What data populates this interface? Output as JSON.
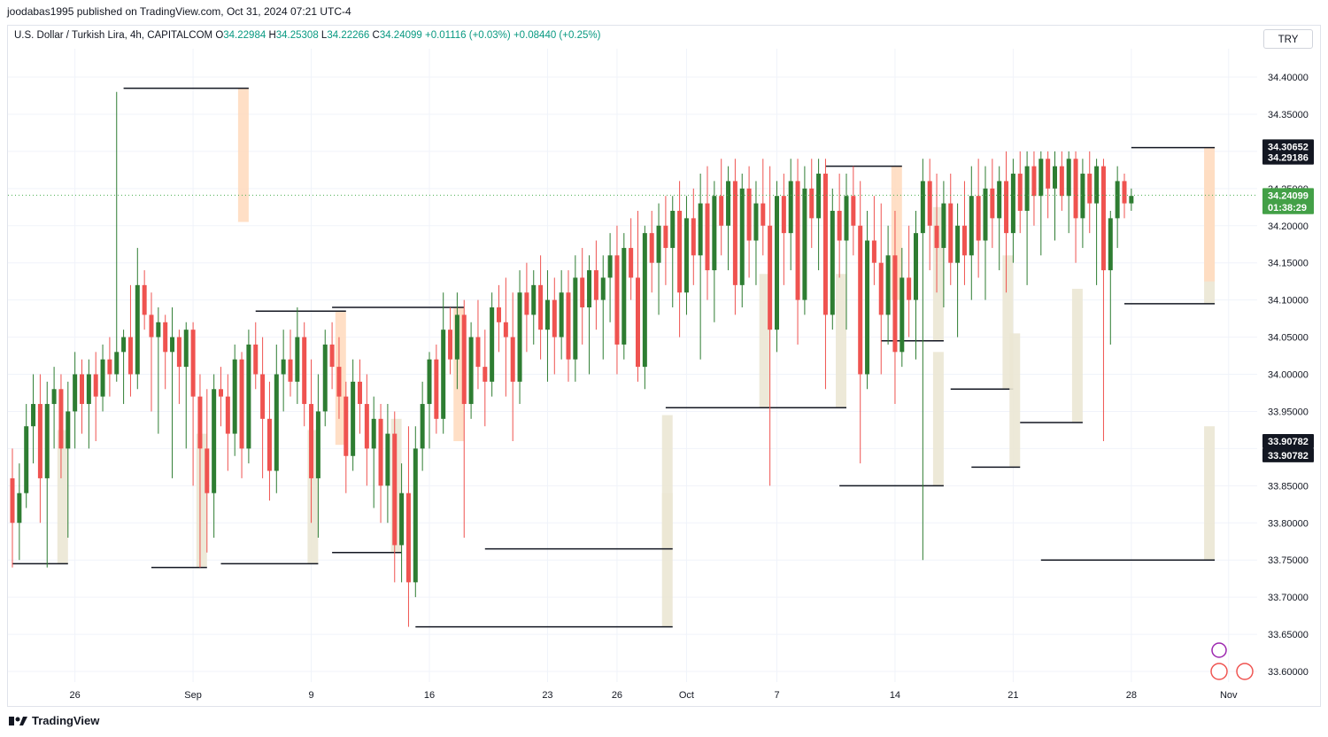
{
  "header": {
    "published": "joodabas1995 published on TradingView.com, Oct 31, 2024 07:21 UTC-4"
  },
  "legend": {
    "symbol": "U.S. Dollar / Turkish Lira, 4h, CAPITALCOM",
    "o_label": "O",
    "o": "34.22984",
    "h_label": "H",
    "h": "34.25308",
    "l_label": "L",
    "l": "34.22266",
    "c_label": "C",
    "c": "34.24099",
    "change": "+0.01116 (+0.03%)",
    "change2": "+0.08440 (+0.25%)"
  },
  "currency": "TRY",
  "footer": {
    "brand": "TradingView"
  },
  "colors": {
    "up": "#2e7d32",
    "down": "#ef5350",
    "supply": "#ffdcc0",
    "demand": "#ebe7d4",
    "price_line": "#4caf50"
  },
  "price_tags": [
    {
      "value": "34.30652",
      "price": 34.30652,
      "bg": "#131722"
    },
    {
      "value": "34.29186",
      "price": 34.29186,
      "bg": "#131722"
    },
    {
      "value": "34.24099",
      "price": 34.24099,
      "bg": "#43a047"
    },
    {
      "value": "01:38:29",
      "price": 34.225,
      "bg": "#43a047"
    },
    {
      "value": "33.90782",
      "price": 33.91,
      "bg": "#131722"
    },
    {
      "value": "33.90782",
      "price": 33.891,
      "bg": "#131722"
    }
  ],
  "chart_data": {
    "type": "candlestick",
    "timeframe": "4h",
    "ylim": [
      33.58,
      34.43
    ],
    "y_ticks": [
      "34.40000",
      "34.35000",
      "34.30000",
      "34.25000",
      "34.20000",
      "34.15000",
      "34.10000",
      "34.05000",
      "34.00000",
      "33.95000",
      "33.90000",
      "33.85000",
      "33.80000",
      "33.75000",
      "33.70000",
      "33.65000",
      "33.60000"
    ],
    "y_tick_values": [
      34.4,
      34.35,
      34.3,
      34.25,
      34.2,
      34.15,
      34.1,
      34.05,
      34.0,
      33.95,
      33.9,
      33.85,
      33.8,
      33.75,
      33.7,
      33.65,
      33.6
    ],
    "x_ticks": [
      "26",
      "Sep",
      "9",
      "16",
      "23",
      "26",
      "Oct",
      "7",
      "14",
      "21",
      "28",
      "Nov"
    ],
    "x_tick_bars": [
      9,
      26,
      43,
      60,
      77,
      87,
      97,
      110,
      127,
      144,
      161,
      175
    ],
    "bar_count": 172,
    "last_price": 34.24099,
    "candles": [
      [
        33.86,
        33.9,
        33.74,
        33.8
      ],
      [
        33.8,
        33.88,
        33.75,
        33.84
      ],
      [
        33.84,
        33.96,
        33.82,
        33.93
      ],
      [
        33.93,
        34.0,
        33.88,
        33.96
      ],
      [
        33.96,
        34.0,
        33.8,
        33.86
      ],
      [
        33.86,
        33.99,
        33.74,
        33.96
      ],
      [
        33.96,
        34.01,
        33.9,
        33.98
      ],
      [
        33.98,
        34.0,
        33.86,
        33.9
      ],
      [
        33.9,
        33.99,
        33.78,
        33.95
      ],
      [
        33.95,
        34.03,
        33.9,
        34.0
      ],
      [
        34.0,
        34.02,
        33.92,
        33.96
      ],
      [
        33.96,
        34.02,
        33.9,
        34.0
      ],
      [
        34.0,
        34.03,
        33.91,
        33.97
      ],
      [
        33.97,
        34.04,
        33.95,
        34.02
      ],
      [
        34.02,
        34.05,
        33.97,
        34.0
      ],
      [
        34.0,
        34.38,
        33.99,
        34.03
      ],
      [
        34.03,
        34.06,
        33.96,
        34.05
      ],
      [
        34.05,
        34.12,
        33.97,
        34.0
      ],
      [
        34.0,
        34.17,
        33.98,
        34.12
      ],
      [
        34.12,
        34.14,
        34.06,
        34.08
      ],
      [
        34.08,
        34.11,
        33.95,
        34.05
      ],
      [
        34.05,
        34.09,
        33.92,
        34.07
      ],
      [
        34.07,
        34.08,
        33.98,
        34.03
      ],
      [
        34.03,
        34.09,
        33.86,
        34.05
      ],
      [
        34.05,
        34.06,
        33.96,
        34.01
      ],
      [
        34.01,
        34.07,
        33.9,
        34.06
      ],
      [
        34.06,
        34.07,
        33.85,
        33.97
      ],
      [
        33.97,
        34.0,
        33.74,
        33.9
      ],
      [
        33.9,
        33.98,
        33.76,
        33.84
      ],
      [
        33.84,
        34.0,
        33.78,
        33.98
      ],
      [
        33.98,
        34.01,
        33.93,
        33.97
      ],
      [
        33.97,
        34.0,
        33.87,
        33.92
      ],
      [
        33.92,
        34.04,
        33.89,
        34.02
      ],
      [
        34.02,
        34.03,
        33.86,
        33.9
      ],
      [
        33.9,
        34.06,
        33.88,
        34.04
      ],
      [
        34.04,
        34.07,
        33.98,
        34.0
      ],
      [
        34.0,
        34.05,
        33.86,
        33.94
      ],
      [
        33.94,
        33.99,
        33.83,
        33.87
      ],
      [
        33.87,
        34.04,
        33.84,
        34.0
      ],
      [
        34.0,
        34.06,
        33.95,
        34.02
      ],
      [
        34.02,
        34.06,
        33.97,
        33.99
      ],
      [
        33.99,
        34.09,
        33.96,
        34.05
      ],
      [
        34.05,
        34.07,
        33.93,
        33.96
      ],
      [
        33.96,
        34.02,
        33.8,
        33.86
      ],
      [
        33.86,
        34.0,
        33.78,
        33.95
      ],
      [
        33.95,
        34.06,
        33.93,
        34.04
      ],
      [
        34.04,
        34.07,
        33.98,
        34.01
      ],
      [
        34.01,
        34.05,
        33.94,
        33.97
      ],
      [
        33.97,
        33.99,
        33.84,
        33.89
      ],
      [
        33.89,
        34.02,
        33.87,
        33.99
      ],
      [
        33.99,
        34.02,
        33.92,
        33.96
      ],
      [
        33.96,
        34.0,
        33.85,
        33.9
      ],
      [
        33.9,
        33.97,
        33.82,
        33.94
      ],
      [
        33.94,
        33.96,
        33.8,
        33.85
      ],
      [
        33.85,
        33.96,
        33.8,
        33.92
      ],
      [
        33.92,
        33.95,
        33.72,
        33.77
      ],
      [
        33.77,
        33.88,
        33.72,
        33.84
      ],
      [
        33.84,
        33.93,
        33.66,
        33.72
      ],
      [
        33.72,
        33.93,
        33.7,
        33.9
      ],
      [
        33.9,
        33.99,
        33.87,
        33.96
      ],
      [
        33.96,
        34.03,
        33.9,
        34.02
      ],
      [
        34.02,
        34.04,
        33.92,
        33.94
      ],
      [
        33.94,
        34.11,
        33.92,
        34.06
      ],
      [
        34.06,
        34.09,
        34.0,
        34.02
      ],
      [
        34.02,
        34.11,
        33.98,
        34.08
      ],
      [
        34.08,
        34.1,
        33.78,
        33.96
      ],
      [
        33.96,
        34.07,
        33.94,
        34.05
      ],
      [
        34.05,
        34.1,
        33.98,
        34.01
      ],
      [
        34.01,
        34.06,
        33.93,
        33.99
      ],
      [
        33.99,
        34.11,
        33.97,
        34.09
      ],
      [
        34.09,
        34.12,
        34.03,
        34.07
      ],
      [
        34.07,
        34.13,
        33.97,
        34.05
      ],
      [
        34.05,
        34.11,
        33.91,
        33.99
      ],
      [
        33.99,
        34.14,
        33.96,
        34.11
      ],
      [
        34.11,
        34.15,
        34.03,
        34.08
      ],
      [
        34.08,
        34.14,
        34.04,
        34.12
      ],
      [
        34.12,
        34.16,
        34.02,
        34.06
      ],
      [
        34.06,
        34.14,
        33.99,
        34.1
      ],
      [
        34.1,
        34.13,
        34.0,
        34.05
      ],
      [
        34.05,
        34.14,
        34.02,
        34.11
      ],
      [
        34.11,
        34.14,
        33.99,
        34.02
      ],
      [
        34.02,
        34.16,
        33.99,
        34.13
      ],
      [
        34.13,
        34.17,
        34.04,
        34.09
      ],
      [
        34.09,
        34.16,
        34.0,
        34.14
      ],
      [
        34.14,
        34.18,
        34.06,
        34.1
      ],
      [
        34.1,
        34.16,
        34.02,
        34.13
      ],
      [
        34.13,
        34.19,
        34.07,
        34.16
      ],
      [
        34.16,
        34.2,
        34.0,
        34.04
      ],
      [
        34.04,
        34.19,
        34.02,
        34.17
      ],
      [
        34.17,
        34.21,
        34.1,
        34.13
      ],
      [
        34.13,
        34.22,
        33.99,
        34.01
      ],
      [
        34.01,
        34.2,
        33.98,
        34.19
      ],
      [
        34.19,
        34.22,
        34.11,
        34.15
      ],
      [
        34.15,
        34.23,
        34.08,
        34.2
      ],
      [
        34.2,
        34.24,
        34.12,
        34.17
      ],
      [
        34.17,
        34.24,
        34.09,
        34.22
      ],
      [
        34.22,
        34.26,
        34.05,
        34.11
      ],
      [
        34.11,
        34.24,
        34.08,
        34.21
      ],
      [
        34.21,
        34.25,
        34.12,
        34.16
      ],
      [
        34.16,
        34.27,
        34.02,
        34.23
      ],
      [
        34.23,
        34.28,
        34.1,
        34.14
      ],
      [
        34.14,
        34.26,
        34.07,
        34.24
      ],
      [
        34.24,
        34.29,
        34.16,
        34.2
      ],
      [
        34.2,
        34.28,
        34.14,
        34.26
      ],
      [
        34.26,
        34.29,
        34.08,
        34.12
      ],
      [
        34.12,
        34.27,
        34.09,
        34.25
      ],
      [
        34.25,
        34.28,
        34.13,
        34.18
      ],
      [
        34.18,
        34.26,
        34.12,
        34.23
      ],
      [
        34.23,
        34.29,
        34.16,
        34.2
      ],
      [
        34.2,
        34.28,
        33.85,
        34.06
      ],
      [
        34.06,
        34.26,
        34.03,
        34.24
      ],
      [
        34.24,
        34.27,
        34.12,
        34.19
      ],
      [
        34.19,
        34.29,
        34.14,
        34.26
      ],
      [
        34.26,
        34.29,
        34.04,
        34.1
      ],
      [
        34.1,
        34.28,
        34.08,
        34.25
      ],
      [
        34.25,
        34.29,
        34.17,
        34.21
      ],
      [
        34.21,
        34.29,
        34.14,
        34.27
      ],
      [
        34.27,
        34.29,
        33.98,
        34.08
      ],
      [
        34.08,
        34.25,
        34.06,
        34.22
      ],
      [
        34.22,
        34.27,
        34.13,
        34.18
      ],
      [
        34.18,
        34.27,
        34.06,
        34.24
      ],
      [
        34.24,
        34.28,
        34.16,
        34.2
      ],
      [
        34.2,
        34.26,
        33.88,
        34.0
      ],
      [
        34.0,
        34.22,
        33.98,
        34.18
      ],
      [
        34.18,
        34.24,
        34.12,
        34.15
      ],
      [
        34.15,
        34.23,
        34.0,
        34.08
      ],
      [
        34.08,
        34.2,
        34.04,
        34.16
      ],
      [
        34.16,
        34.22,
        33.96,
        34.03
      ],
      [
        34.03,
        34.17,
        34.01,
        34.13
      ],
      [
        34.13,
        34.2,
        34.05,
        34.1
      ],
      [
        34.1,
        34.22,
        34.02,
        34.19
      ],
      [
        34.19,
        34.29,
        33.75,
        34.26
      ],
      [
        34.26,
        34.29,
        34.14,
        34.2
      ],
      [
        34.2,
        34.27,
        34.11,
        34.17
      ],
      [
        34.17,
        34.26,
        34.09,
        34.23
      ],
      [
        34.23,
        34.27,
        34.12,
        34.15
      ],
      [
        34.15,
        34.23,
        34.05,
        34.2
      ],
      [
        34.2,
        34.26,
        34.12,
        34.16
      ],
      [
        34.16,
        34.28,
        34.1,
        34.24
      ],
      [
        34.24,
        34.29,
        34.13,
        34.18
      ],
      [
        34.18,
        34.28,
        34.1,
        34.25
      ],
      [
        34.25,
        34.29,
        34.17,
        34.21
      ],
      [
        34.21,
        34.28,
        34.14,
        34.26
      ],
      [
        34.26,
        34.3,
        34.11,
        34.19
      ],
      [
        34.19,
        34.29,
        34.15,
        34.27
      ],
      [
        34.27,
        34.3,
        34.19,
        34.22
      ],
      [
        34.22,
        34.3,
        34.12,
        34.28
      ],
      [
        34.28,
        34.3,
        34.2,
        34.24
      ],
      [
        34.24,
        34.3,
        34.16,
        34.29
      ],
      [
        34.29,
        34.3,
        34.21,
        34.25
      ],
      [
        34.25,
        34.3,
        34.18,
        34.28
      ],
      [
        34.28,
        34.3,
        34.22,
        34.24
      ],
      [
        34.24,
        34.3,
        34.19,
        34.29
      ],
      [
        34.29,
        34.3,
        34.15,
        34.21
      ],
      [
        34.21,
        34.29,
        34.17,
        34.27
      ],
      [
        34.27,
        34.3,
        34.19,
        34.23
      ],
      [
        34.23,
        34.29,
        34.12,
        34.28
      ],
      [
        34.28,
        34.29,
        33.91,
        34.14
      ],
      [
        34.14,
        34.22,
        34.04,
        34.21
      ],
      [
        34.21,
        34.28,
        34.17,
        34.26
      ],
      [
        34.26,
        34.27,
        34.21,
        34.23
      ],
      [
        34.23,
        34.25,
        34.22,
        34.24
      ]
    ],
    "zones": [
      {
        "type": "demand",
        "start": 0,
        "end": 8,
        "price": 33.745
      },
      {
        "type": "demand",
        "start": 20,
        "end": 28,
        "price": 33.74
      },
      {
        "type": "supply",
        "start": 16,
        "end": 34,
        "price": 34.385
      },
      {
        "type": "demand",
        "start": 30,
        "end": 44,
        "price": 33.745
      },
      {
        "type": "supply",
        "start": 35,
        "end": 48,
        "price": 34.085
      },
      {
        "type": "demand",
        "start": 46,
        "end": 56,
        "price": 33.76
      },
      {
        "type": "supply",
        "start": 46,
        "end": 65,
        "price": 34.09
      },
      {
        "type": "demand",
        "start": 58,
        "end": 95,
        "price": 33.66
      },
      {
        "type": "demand",
        "start": 68,
        "end": 95,
        "price": 33.765
      },
      {
        "type": "demand",
        "start": 94,
        "end": 109,
        "price": 33.955
      },
      {
        "type": "demand",
        "start": 109,
        "end": 120,
        "price": 33.955
      },
      {
        "type": "supply",
        "start": 117,
        "end": 128,
        "price": 34.28
      },
      {
        "type": "demand",
        "start": 119,
        "end": 134,
        "price": 33.85
      },
      {
        "type": "demand",
        "start": 125,
        "end": 134,
        "price": 34.045
      },
      {
        "type": "demand",
        "start": 135,
        "end": 144,
        "price": 33.98
      },
      {
        "type": "demand",
        "start": 138,
        "end": 145,
        "price": 33.875
      },
      {
        "type": "demand",
        "start": 145,
        "end": 154,
        "price": 33.935
      },
      {
        "type": "demand",
        "start": 148,
        "end": 173,
        "price": 33.75
      },
      {
        "type": "demand",
        "start": 160,
        "end": 173,
        "price": 34.095
      },
      {
        "type": "supply",
        "start": 161,
        "end": 173,
        "price": 34.305
      }
    ]
  }
}
